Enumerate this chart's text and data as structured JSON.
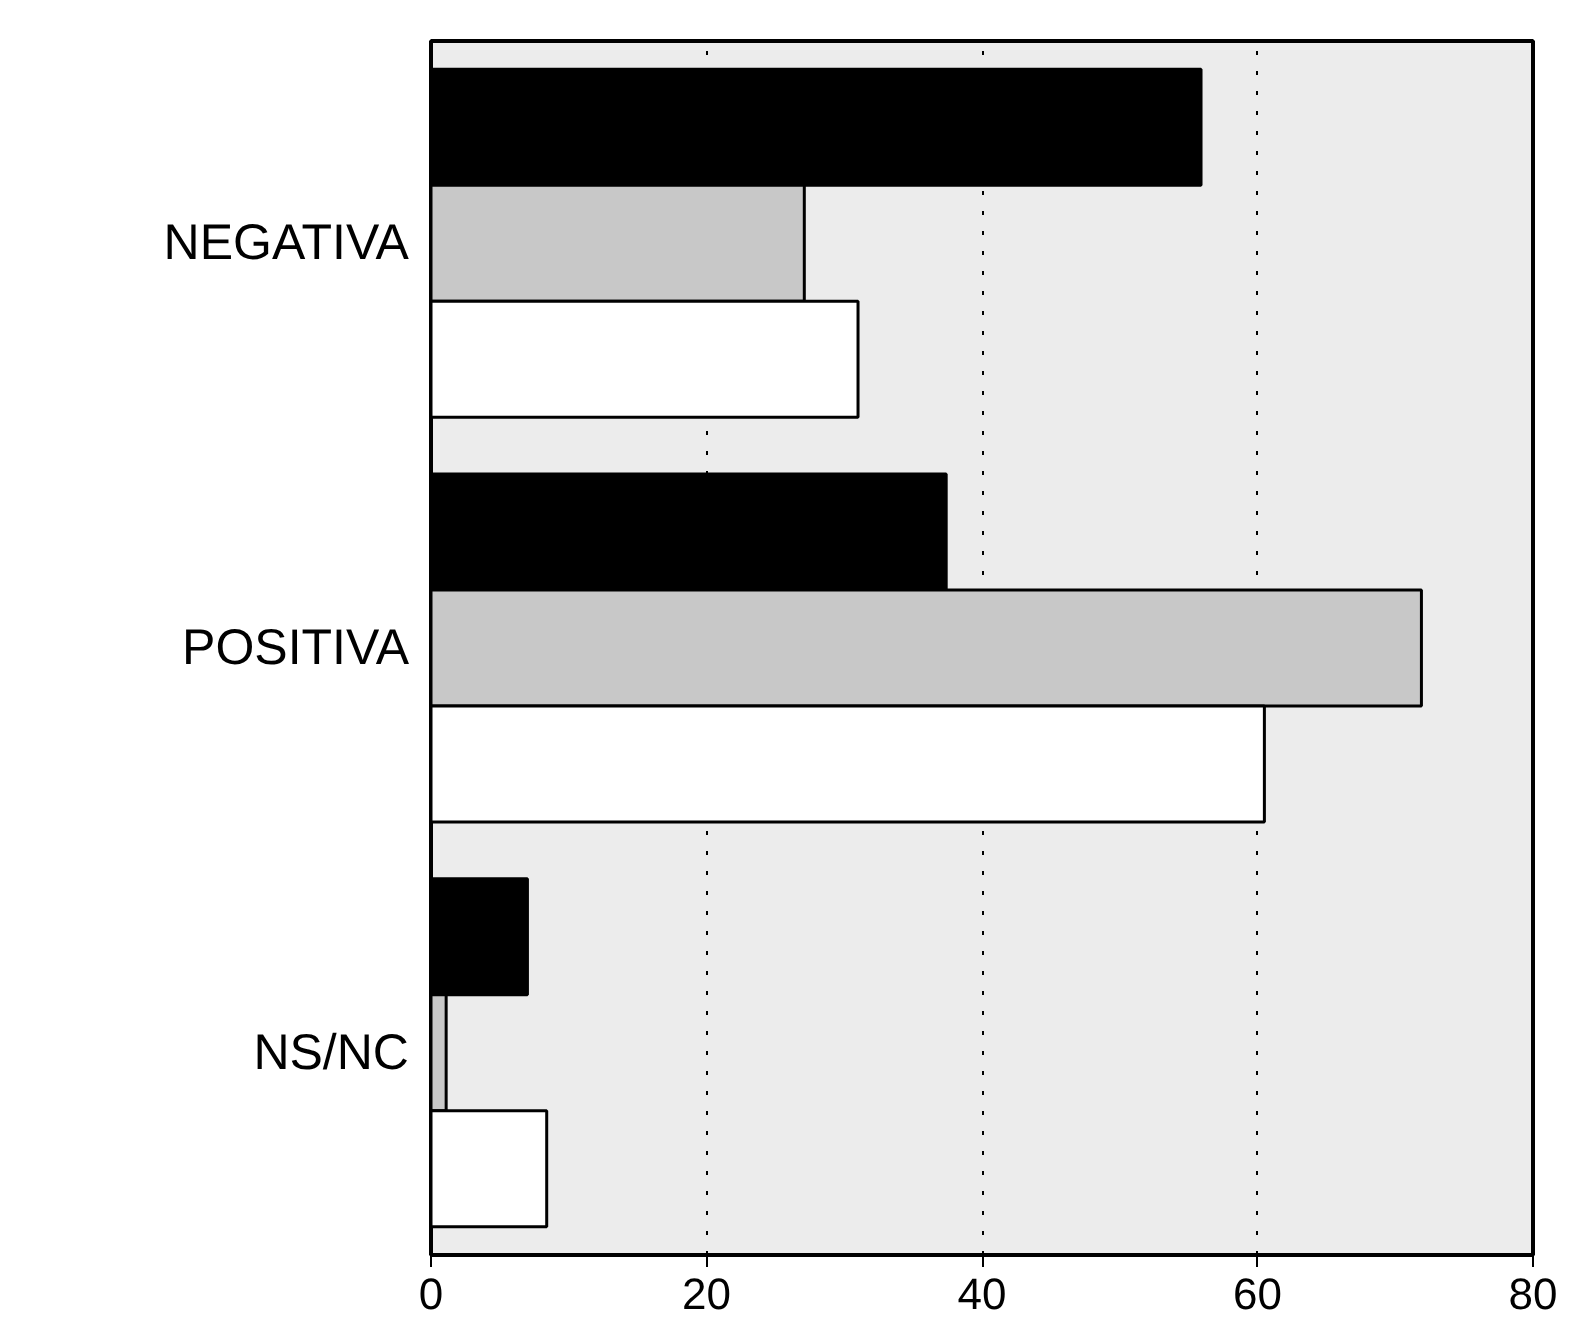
{
  "chart_data": {
    "type": "bar",
    "orientation": "horizontal",
    "categories": [
      "NEGATIVA",
      "POSITIVA",
      "NS/NC"
    ],
    "series": [
      {
        "color": "#000000",
        "values": [
          55.9,
          37.4,
          7.0
        ]
      },
      {
        "color": "#c8c8c8",
        "values": [
          27.1,
          71.9,
          1.1
        ]
      },
      {
        "color": "#ffffff",
        "values": [
          31.0,
          60.5,
          8.4
        ]
      }
    ],
    "xlim": [
      0,
      80
    ],
    "xticks": [
      0,
      20,
      40,
      60,
      80
    ],
    "grid": "x"
  }
}
